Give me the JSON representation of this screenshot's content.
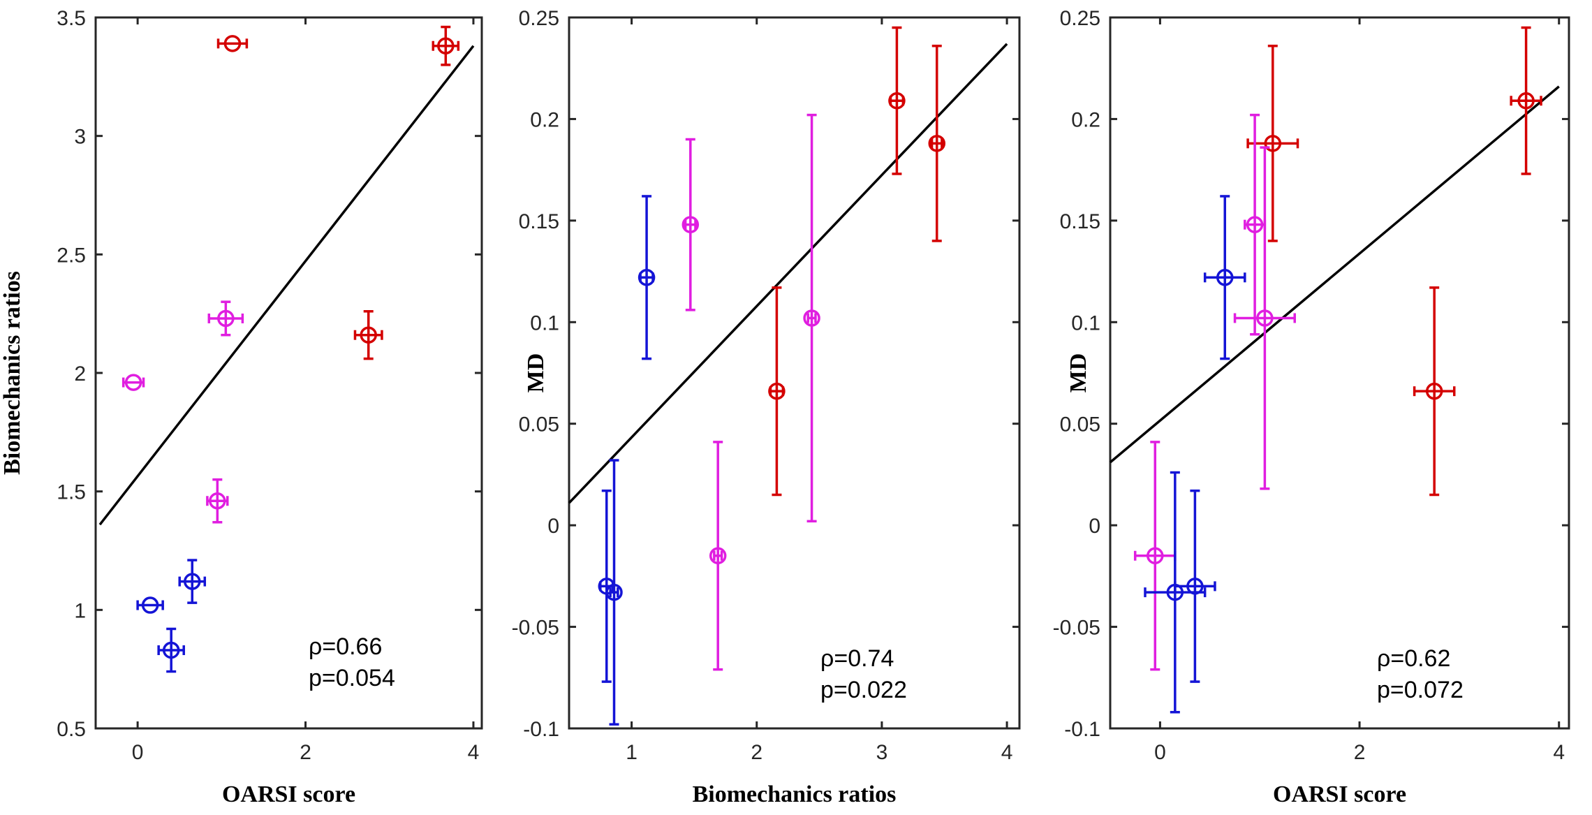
{
  "chart_data": [
    {
      "type": "scatter",
      "xlabel": "OARSI score",
      "ylabel": "Biomechanics ratios",
      "xlim": [
        -0.5,
        4.1
      ],
      "ylim": [
        0.5,
        3.5
      ],
      "xticks": [
        0,
        2,
        4
      ],
      "yticks": [
        0.5,
        1,
        1.5,
        2,
        2.5,
        3,
        3.5
      ],
      "xtick_labels": [
        "0",
        "2",
        "4"
      ],
      "ytick_labels": [
        "0.5",
        "1",
        "1.5",
        "2",
        "2.5",
        "3",
        "3.5"
      ],
      "points": [
        {
          "x": 1.13,
          "y": 3.39,
          "xerr": 0.17,
          "yerr": 0.0,
          "color": "#d40000"
        },
        {
          "x": 3.67,
          "y": 3.38,
          "xerr": 0.15,
          "yerr": 0.08,
          "color": "#d40000"
        },
        {
          "x": 2.75,
          "y": 2.16,
          "xerr": 0.16,
          "yerr": 0.1,
          "color": "#d40000"
        },
        {
          "x": 1.05,
          "y": 2.23,
          "xerr": 0.2,
          "yerr": 0.07,
          "color": "#e01ee0"
        },
        {
          "x": -0.05,
          "y": 1.96,
          "xerr": 0.12,
          "yerr": 0.0,
          "color": "#e01ee0"
        },
        {
          "x": 0.95,
          "y": 1.46,
          "xerr": 0.12,
          "yerr": 0.09,
          "color": "#e01ee0"
        },
        {
          "x": 0.65,
          "y": 1.12,
          "xerr": 0.15,
          "yerr": 0.09,
          "color": "#1414d6"
        },
        {
          "x": 0.15,
          "y": 1.02,
          "xerr": 0.15,
          "yerr": 0.0,
          "color": "#1414d6"
        },
        {
          "x": 0.4,
          "y": 0.83,
          "xerr": 0.15,
          "yerr": 0.09,
          "color": "#1414d6"
        }
      ],
      "fit_line": {
        "x": [
          -0.45,
          4.0
        ],
        "y": [
          1.36,
          3.38
        ]
      },
      "annotation": {
        "rho": "ρ=0.66",
        "p": "p=0.054"
      }
    },
    {
      "type": "scatter",
      "xlabel": "Biomechanics ratios",
      "ylabel": "MD",
      "xlim": [
        0.5,
        4.1
      ],
      "ylim": [
        -0.1,
        0.25
      ],
      "xticks": [
        1,
        2,
        3,
        4
      ],
      "yticks": [
        -0.1,
        -0.05,
        0,
        0.05,
        0.1,
        0.15,
        0.2,
        0.25
      ],
      "xtick_labels": [
        "1",
        "2",
        "3",
        "4"
      ],
      "ytick_labels": [
        "-0.1",
        "-0.05",
        "0",
        "0.05",
        "0.1",
        "0.15",
        "0.2",
        "0.25"
      ],
      "points": [
        {
          "x": 3.12,
          "y": 0.209,
          "xerr": 0.05,
          "yerr": 0.036,
          "color": "#d40000"
        },
        {
          "x": 3.44,
          "y": 0.188,
          "xerr": 0.04,
          "yerr": 0.048,
          "color": "#d40000"
        },
        {
          "x": 2.16,
          "y": 0.066,
          "xerr": 0.05,
          "yerr": 0.051,
          "color": "#d40000"
        },
        {
          "x": 1.47,
          "y": 0.148,
          "xerr": 0.04,
          "yerr": 0.042,
          "color": "#e01ee0"
        },
        {
          "x": 2.44,
          "y": 0.102,
          "xerr": 0.03,
          "yerr": 0.1,
          "color": "#e01ee0"
        },
        {
          "x": 1.69,
          "y": -0.015,
          "xerr": 0.03,
          "yerr": 0.056,
          "color": "#e01ee0"
        },
        {
          "x": 1.12,
          "y": 0.122,
          "xerr": 0.05,
          "yerr": 0.04,
          "color": "#1414d6"
        },
        {
          "x": 0.8,
          "y": -0.03,
          "xerr": 0.05,
          "yerr": 0.047,
          "color": "#1414d6"
        },
        {
          "x": 0.86,
          "y": -0.033,
          "xerr": 0.03,
          "yerr": 0.065,
          "color": "#1414d6"
        }
      ],
      "fit_line": {
        "x": [
          0.5,
          4.0
        ],
        "y": [
          0.011,
          0.237
        ]
      },
      "annotation": {
        "rho": "ρ=0.74",
        "p": "p=0.022"
      }
    },
    {
      "type": "scatter",
      "xlabel": "OARSI score",
      "ylabel": "MD",
      "xlim": [
        -0.5,
        4.1
      ],
      "ylim": [
        -0.1,
        0.25
      ],
      "xticks": [
        0,
        2,
        4
      ],
      "yticks": [
        -0.1,
        -0.05,
        0,
        0.05,
        0.1,
        0.15,
        0.2,
        0.25
      ],
      "xtick_labels": [
        "0",
        "2",
        "4"
      ],
      "ytick_labels": [
        "-0.1",
        "-0.05",
        "0",
        "0.05",
        "0.1",
        "0.15",
        "0.2",
        "0.25"
      ],
      "points": [
        {
          "x": 3.67,
          "y": 0.209,
          "xerr": 0.15,
          "yerr": 0.036,
          "color": "#d40000"
        },
        {
          "x": 1.13,
          "y": 0.188,
          "xerr": 0.25,
          "yerr": 0.048,
          "color": "#d40000"
        },
        {
          "x": 2.75,
          "y": 0.066,
          "xerr": 0.2,
          "yerr": 0.051,
          "color": "#d40000"
        },
        {
          "x": 0.95,
          "y": 0.148,
          "xerr": 0.1,
          "yerr": 0.054,
          "color": "#e01ee0"
        },
        {
          "x": 1.05,
          "y": 0.102,
          "xerr": 0.3,
          "yerr": 0.084,
          "color": "#e01ee0"
        },
        {
          "x": -0.05,
          "y": -0.015,
          "xerr": 0.2,
          "yerr": 0.056,
          "color": "#e01ee0"
        },
        {
          "x": 0.65,
          "y": 0.122,
          "xerr": 0.2,
          "yerr": 0.04,
          "color": "#1414d6"
        },
        {
          "x": 0.15,
          "y": -0.033,
          "xerr": 0.3,
          "yerr": 0.059,
          "color": "#1414d6"
        },
        {
          "x": 0.35,
          "y": -0.03,
          "xerr": 0.2,
          "yerr": 0.047,
          "color": "#1414d6"
        }
      ],
      "fit_line": {
        "x": [
          -0.5,
          4.0
        ],
        "y": [
          0.031,
          0.216
        ]
      },
      "annotation": {
        "rho": "ρ=0.62",
        "p": "p=0.072"
      }
    }
  ]
}
